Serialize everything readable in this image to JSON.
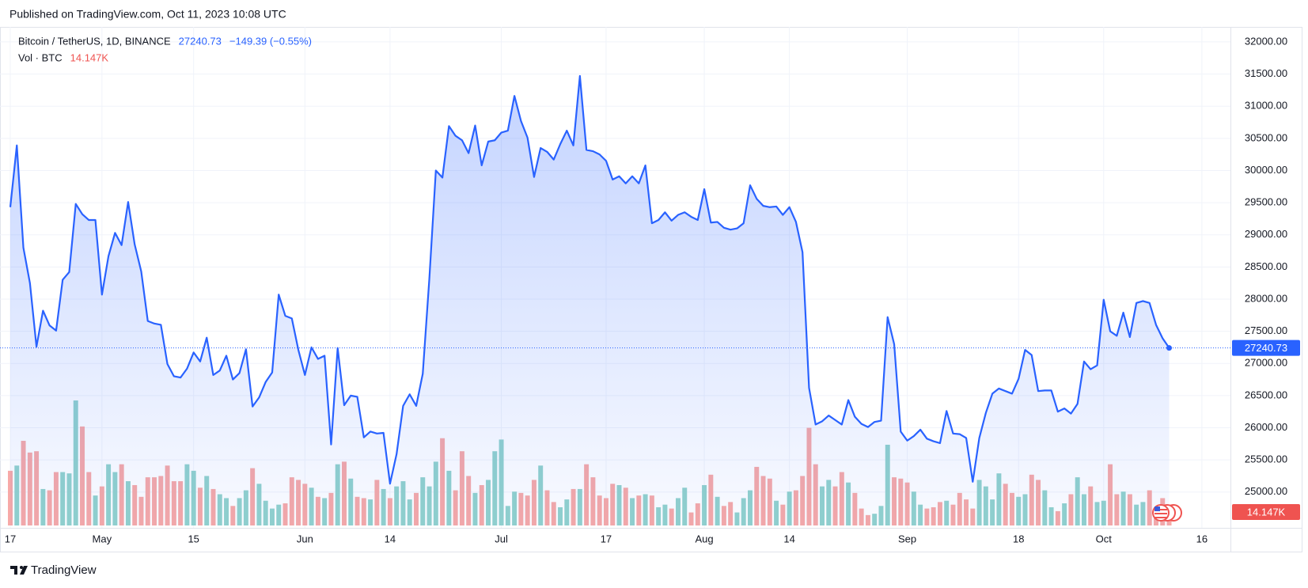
{
  "chart_data": {
    "type": "area",
    "header": "Published on TradingView.com, Oct 11, 2023 10:08 UTC",
    "change_label": "−149.39 (−0.55%)",
    "footer": "TradingView",
    "x": [
      "2023-04-17",
      "2023-04-18",
      "2023-04-19",
      "2023-04-20",
      "2023-04-21",
      "2023-04-22",
      "2023-04-23",
      "2023-04-24",
      "2023-04-25",
      "2023-04-26",
      "2023-04-27",
      "2023-04-28",
      "2023-04-29",
      "2023-04-30",
      "2023-05-01",
      "2023-05-02",
      "2023-05-03",
      "2023-05-04",
      "2023-05-05",
      "2023-05-06",
      "2023-05-07",
      "2023-05-08",
      "2023-05-09",
      "2023-05-10",
      "2023-05-11",
      "2023-05-12",
      "2023-05-13",
      "2023-05-14",
      "2023-05-15",
      "2023-05-16",
      "2023-05-17",
      "2023-05-18",
      "2023-05-19",
      "2023-05-20",
      "2023-05-21",
      "2023-05-22",
      "2023-05-23",
      "2023-05-24",
      "2023-05-25",
      "2023-05-26",
      "2023-05-27",
      "2023-05-28",
      "2023-05-29",
      "2023-05-30",
      "2023-05-31",
      "2023-06-01",
      "2023-06-02",
      "2023-06-03",
      "2023-06-04",
      "2023-06-05",
      "2023-06-06",
      "2023-06-07",
      "2023-06-08",
      "2023-06-09",
      "2023-06-10",
      "2023-06-11",
      "2023-06-12",
      "2023-06-13",
      "2023-06-14",
      "2023-06-15",
      "2023-06-16",
      "2023-06-17",
      "2023-06-18",
      "2023-06-19",
      "2023-06-20",
      "2023-06-21",
      "2023-06-22",
      "2023-06-23",
      "2023-06-24",
      "2023-06-25",
      "2023-06-26",
      "2023-06-27",
      "2023-06-28",
      "2023-06-29",
      "2023-06-30",
      "2023-07-01",
      "2023-07-02",
      "2023-07-03",
      "2023-07-04",
      "2023-07-05",
      "2023-07-06",
      "2023-07-07",
      "2023-07-08",
      "2023-07-09",
      "2023-07-10",
      "2023-07-11",
      "2023-07-12",
      "2023-07-13",
      "2023-07-14",
      "2023-07-15",
      "2023-07-16",
      "2023-07-17",
      "2023-07-18",
      "2023-07-19",
      "2023-07-20",
      "2023-07-21",
      "2023-07-22",
      "2023-07-23",
      "2023-07-24",
      "2023-07-25",
      "2023-07-26",
      "2023-07-27",
      "2023-07-28",
      "2023-07-29",
      "2023-07-30",
      "2023-07-31",
      "2023-08-01",
      "2023-08-02",
      "2023-08-03",
      "2023-08-04",
      "2023-08-05",
      "2023-08-06",
      "2023-08-07",
      "2023-08-08",
      "2023-08-09",
      "2023-08-10",
      "2023-08-11",
      "2023-08-12",
      "2023-08-13",
      "2023-08-14",
      "2023-08-15",
      "2023-08-16",
      "2023-08-17",
      "2023-08-18",
      "2023-08-19",
      "2023-08-20",
      "2023-08-21",
      "2023-08-22",
      "2023-08-23",
      "2023-08-24",
      "2023-08-25",
      "2023-08-26",
      "2023-08-27",
      "2023-08-28",
      "2023-08-29",
      "2023-08-30",
      "2023-08-31",
      "2023-09-01",
      "2023-09-02",
      "2023-09-03",
      "2023-09-04",
      "2023-09-05",
      "2023-09-06",
      "2023-09-07",
      "2023-09-08",
      "2023-09-09",
      "2023-09-10",
      "2023-09-11",
      "2023-09-12",
      "2023-09-13",
      "2023-09-14",
      "2023-09-15",
      "2023-09-16",
      "2023-09-17",
      "2023-09-18",
      "2023-09-19",
      "2023-09-20",
      "2023-09-21",
      "2023-09-22",
      "2023-09-23",
      "2023-09-24",
      "2023-09-25",
      "2023-09-26",
      "2023-09-27",
      "2023-09-28",
      "2023-09-29",
      "2023-09-30",
      "2023-10-01",
      "2023-10-02",
      "2023-10-03",
      "2023-10-04",
      "2023-10-05",
      "2023-10-06",
      "2023-10-07",
      "2023-10-08",
      "2023-10-09",
      "2023-10-10",
      "2023-10-11"
    ],
    "series": [
      {
        "name": "Bitcoin / TetherUS, 1D, BINANCE",
        "color": "#2962ff",
        "values": [
          29430,
          30390,
          28800,
          28250,
          27260,
          27820,
          27590,
          27510,
          28300,
          28420,
          29480,
          29320,
          29230,
          29230,
          28070,
          28670,
          29030,
          28840,
          29510,
          28850,
          28430,
          27660,
          27620,
          27600,
          26990,
          26800,
          26780,
          26920,
          27170,
          27030,
          27400,
          26820,
          26890,
          27120,
          26750,
          26850,
          27220,
          26330,
          26470,
          26710,
          26860,
          28070,
          27740,
          27700,
          27210,
          26820,
          27250,
          27070,
          27120,
          25740,
          27240,
          26350,
          26500,
          26480,
          25850,
          25940,
          25910,
          25920,
          25130,
          25590,
          26340,
          26520,
          26340,
          26840,
          28310,
          30000,
          29890,
          30690,
          30540,
          30470,
          30270,
          30700,
          30080,
          30450,
          30470,
          30590,
          30620,
          31160,
          30770,
          30510,
          29900,
          30350,
          30290,
          30170,
          30410,
          30620,
          30390,
          31470,
          30320,
          30300,
          30250,
          30150,
          29860,
          29910,
          29800,
          29910,
          29800,
          30080,
          29180,
          29230,
          29350,
          29220,
          29310,
          29350,
          29280,
          29230,
          29710,
          29190,
          29200,
          29110,
          29080,
          29100,
          29180,
          29770,
          29560,
          29450,
          29430,
          29440,
          29310,
          29430,
          29200,
          28730,
          26620,
          26050,
          26100,
          26190,
          26120,
          26050,
          26430,
          26170,
          26060,
          26010,
          26090,
          26110,
          27720,
          27300,
          25940,
          25800,
          25870,
          25970,
          25830,
          25790,
          25760,
          26260,
          25910,
          25900,
          25840,
          25160,
          25840,
          26230,
          26530,
          26610,
          26570,
          26530,
          26760,
          27210,
          27130,
          26570,
          26580,
          26580,
          26250,
          26300,
          26220,
          26370,
          27030,
          26910,
          26970,
          27990,
          27500,
          27430,
          27790,
          27410,
          27940,
          27970,
          27940,
          27600,
          27390,
          27240.73
        ]
      },
      {
        "name": "Vol · BTC",
        "up_color": "#92d2cc",
        "down_color": "#f7a9a7",
        "label_color": "#ef5350",
        "last_value_label": "14.147K",
        "values": [
          42,
          46,
          65,
          56,
          57,
          28,
          27,
          41,
          41,
          40,
          96,
          76,
          41,
          23,
          30,
          47,
          41,
          47,
          34,
          31,
          22,
          37,
          37,
          38,
          46,
          34,
          34,
          47,
          42,
          29,
          38,
          28,
          24,
          21,
          15,
          21,
          27,
          44,
          32,
          19,
          13,
          16,
          17,
          37,
          35,
          32,
          29,
          22,
          21,
          25,
          47,
          49,
          36,
          22,
          21,
          20,
          35,
          28,
          21,
          30,
          34,
          20,
          25,
          37,
          30,
          49,
          67,
          42,
          27,
          57,
          38,
          25,
          31,
          35,
          57,
          66,
          15,
          26,
          25,
          23,
          35,
          46,
          27,
          18,
          14,
          20,
          28,
          28,
          47,
          37,
          23,
          21,
          32,
          31,
          29,
          21,
          23,
          24,
          23,
          14,
          16,
          13,
          21,
          29,
          10,
          17,
          31,
          39,
          22,
          15,
          18,
          10,
          21,
          27,
          45,
          38,
          36,
          19,
          16,
          26,
          27,
          38,
          75,
          47,
          30,
          35,
          30,
          41,
          33,
          25,
          13,
          8,
          9,
          15,
          62,
          37,
          36,
          33,
          26,
          16,
          13,
          14,
          18,
          19,
          16,
          25,
          20,
          13,
          35,
          30,
          20,
          40,
          32,
          25,
          22,
          24,
          39,
          35,
          27,
          14,
          11,
          17,
          24,
          37,
          24,
          30,
          18,
          19,
          47,
          24,
          26,
          24,
          16,
          18,
          27,
          14,
          21,
          14.147
        ]
      }
    ],
    "xlim": [
      "2023-04-17",
      "2023-10-20"
    ],
    "xticks": [
      {
        "value": "2023-04-17",
        "label": "17"
      },
      {
        "value": "2023-05-01",
        "label": "May"
      },
      {
        "value": "2023-05-15",
        "label": "15"
      },
      {
        "value": "2023-06-01",
        "label": "Jun"
      },
      {
        "value": "2023-06-14",
        "label": "14"
      },
      {
        "value": "2023-07-01",
        "label": "Jul"
      },
      {
        "value": "2023-07-17",
        "label": "17"
      },
      {
        "value": "2023-08-01",
        "label": "Aug"
      },
      {
        "value": "2023-08-14",
        "label": "14"
      },
      {
        "value": "2023-09-01",
        "label": "Sep"
      },
      {
        "value": "2023-09-18",
        "label": "18"
      },
      {
        "value": "2023-10-01",
        "label": "Oct"
      },
      {
        "value": "2023-10-16",
        "label": "16"
      }
    ],
    "ylim": [
      24480,
      32233
    ],
    "yticks": [
      {
        "value": 25000,
        "label": "25000.00"
      },
      {
        "value": 25500,
        "label": "25500.00"
      },
      {
        "value": 26000,
        "label": "26000.00"
      },
      {
        "value": 26500,
        "label": "26500.00"
      },
      {
        "value": 27000,
        "label": "27000.00"
      },
      {
        "value": 27500,
        "label": "27500.00"
      },
      {
        "value": 28000,
        "label": "28000.00"
      },
      {
        "value": 28500,
        "label": "28500.00"
      },
      {
        "value": 29000,
        "label": "29000.00"
      },
      {
        "value": 29500,
        "label": "29500.00"
      },
      {
        "value": 30000,
        "label": "30000.00"
      },
      {
        "value": 30500,
        "label": "30500.00"
      },
      {
        "value": 31000,
        "label": "31000.00"
      },
      {
        "value": 31500,
        "label": "31500.00"
      },
      {
        "value": 32000,
        "label": "32000.00"
      }
    ],
    "grid": true
  }
}
